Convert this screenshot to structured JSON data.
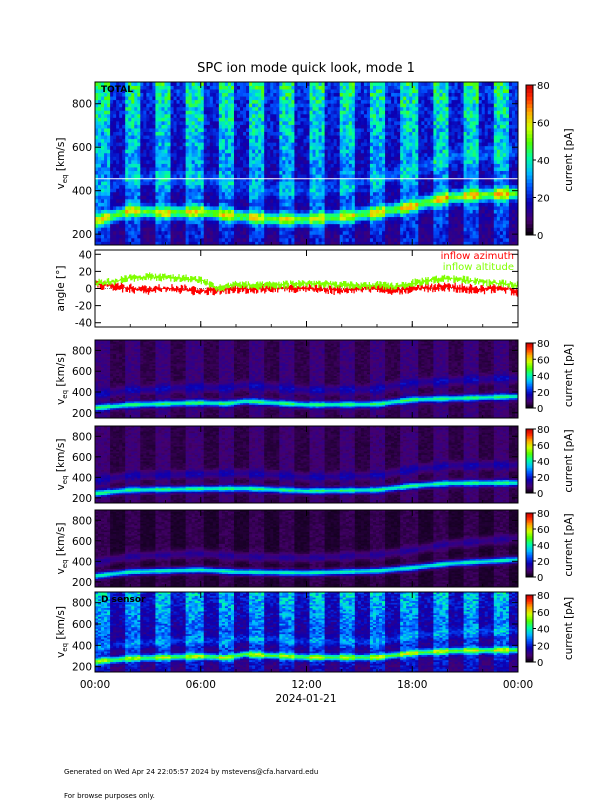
{
  "title": "SPC ion mode quick look, mode 1",
  "date_label": "2024-01-21",
  "footer": {
    "generated": "Generated on Wed Apr 24 22:05:57 2024 by mstevens@cfa.harvard.edu",
    "note": "For browse purposes only."
  },
  "colors": {
    "azimuth": "#ff0000",
    "altitude": "#80ff00",
    "axis": "#000000",
    "background": "#ffffff"
  },
  "chart_data": [
    {
      "type": "heatmap",
      "id": "total",
      "panel_label": "TOTAL",
      "ylabel_main": "v",
      "ylabel_sub": "eq",
      "ylabel_unit": " [km/s]",
      "y_ticks": [
        "200",
        "400",
        "600",
        "800"
      ],
      "y_tick_values": [
        200,
        400,
        600,
        800
      ],
      "ylim": [
        150,
        900
      ],
      "colorbar_label": "current [pA]",
      "colorbar_ticks": [
        "0",
        "20",
        "40",
        "60",
        "80"
      ],
      "colorbar_range": [
        0,
        80
      ],
      "reference_line_speed": 455,
      "background_level": 35,
      "peak_speed": [
        [
          0,
          260
        ],
        [
          2,
          310
        ],
        [
          4,
          300
        ],
        [
          6,
          305
        ],
        [
          8,
          285
        ],
        [
          10,
          270
        ],
        [
          12,
          270
        ],
        [
          14,
          280
        ],
        [
          16,
          300
        ],
        [
          18,
          330
        ],
        [
          20,
          370
        ],
        [
          22,
          380
        ],
        [
          24,
          390
        ]
      ]
    },
    {
      "type": "line",
      "id": "angle",
      "ylabel": "angle [°]",
      "y_ticks": [
        "-40",
        "-20",
        "0",
        "20",
        "40"
      ],
      "y_tick_values": [
        -40,
        -20,
        0,
        20,
        40
      ],
      "ylim": [
        -45,
        45
      ],
      "series": [
        {
          "name": "inflow azimuth",
          "color": "#ff0000",
          "x": [
            0,
            1,
            2,
            3,
            4,
            5,
            6,
            7,
            8,
            9,
            10,
            11,
            12,
            13,
            14,
            15,
            16,
            17,
            18,
            19,
            20,
            21,
            22,
            23,
            24
          ],
          "values": [
            5,
            3,
            0,
            -2,
            0,
            -1,
            -3,
            -2,
            0,
            -1,
            0,
            1,
            0,
            -1,
            -2,
            0,
            1,
            -2,
            0,
            1,
            2,
            0,
            -1,
            1,
            -4
          ]
        },
        {
          "name": "inflow altitude",
          "color": "#80ff00",
          "x": [
            0,
            1,
            2,
            3,
            4,
            5,
            6,
            7,
            8,
            9,
            10,
            11,
            12,
            13,
            14,
            15,
            16,
            17,
            18,
            19,
            20,
            21,
            22,
            23,
            24
          ],
          "values": [
            6,
            8,
            12,
            14,
            13,
            12,
            10,
            0,
            5,
            3,
            4,
            5,
            6,
            5,
            4,
            3,
            4,
            2,
            6,
            10,
            12,
            10,
            8,
            6,
            4
          ]
        }
      ]
    },
    {
      "type": "heatmap",
      "id": "sensor_a",
      "ylabel_main": "v",
      "ylabel_sub": "eq",
      "ylabel_unit": " [km/s]",
      "y_ticks": [
        "200",
        "400",
        "600",
        "800"
      ],
      "y_tick_values": [
        200,
        400,
        600,
        800
      ],
      "ylim": [
        150,
        900
      ],
      "colorbar_label": "current [pA]",
      "colorbar_ticks": [
        "0",
        "20",
        "40",
        "60",
        "80"
      ],
      "colorbar_range": [
        0,
        80
      ],
      "background_level": 10,
      "peak_speed": [
        [
          0,
          250
        ],
        [
          2,
          280
        ],
        [
          4,
          290
        ],
        [
          6,
          300
        ],
        [
          7.5,
          290
        ],
        [
          8.5,
          315
        ],
        [
          12,
          280
        ],
        [
          16,
          285
        ],
        [
          18,
          330
        ],
        [
          20,
          340
        ],
        [
          24,
          360
        ]
      ]
    },
    {
      "type": "heatmap",
      "id": "sensor_b",
      "ylabel_main": "v",
      "ylabel_sub": "eq",
      "ylabel_unit": " [km/s]",
      "y_ticks": [
        "200",
        "400",
        "600",
        "800"
      ],
      "y_tick_values": [
        200,
        400,
        600,
        800
      ],
      "ylim": [
        150,
        900
      ],
      "colorbar_label": "current [pA]",
      "colorbar_ticks": [
        "0",
        "20",
        "40",
        "60",
        "80"
      ],
      "colorbar_range": [
        0,
        80
      ],
      "background_level": 9,
      "peak_speed": [
        [
          0,
          245
        ],
        [
          2,
          280
        ],
        [
          4,
          285
        ],
        [
          6,
          290
        ],
        [
          8.5,
          295
        ],
        [
          12,
          270
        ],
        [
          16,
          280
        ],
        [
          18,
          320
        ],
        [
          20,
          345
        ],
        [
          24,
          350
        ]
      ]
    },
    {
      "type": "heatmap",
      "id": "sensor_c",
      "ylabel_main": "v",
      "ylabel_sub": "eq",
      "ylabel_unit": " [km/s]",
      "y_ticks": [
        "200",
        "400",
        "600",
        "800"
      ],
      "y_tick_values": [
        200,
        400,
        600,
        800
      ],
      "ylim": [
        150,
        900
      ],
      "colorbar_label": "current [pA]",
      "colorbar_ticks": [
        "0",
        "20",
        "40",
        "60",
        "80"
      ],
      "colorbar_range": [
        0,
        80
      ],
      "background_level": 6,
      "peak_speed": [
        [
          0,
          260
        ],
        [
          2,
          300
        ],
        [
          4,
          310
        ],
        [
          6,
          320
        ],
        [
          8,
          300
        ],
        [
          12,
          290
        ],
        [
          16,
          310
        ],
        [
          18,
          340
        ],
        [
          20,
          380
        ],
        [
          22,
          400
        ],
        [
          24,
          420
        ]
      ]
    },
    {
      "type": "heatmap",
      "id": "sensor_d",
      "panel_label": "D sensor",
      "ylabel_main": "v",
      "ylabel_sub": "eq",
      "ylabel_unit": " [km/s]",
      "y_ticks": [
        "200",
        "400",
        "600",
        "800"
      ],
      "y_tick_values": [
        200,
        400,
        600,
        800
      ],
      "ylim": [
        150,
        900
      ],
      "colorbar_label": "current [pA]",
      "colorbar_ticks": [
        "0",
        "20",
        "40",
        "60",
        "80"
      ],
      "colorbar_range": [
        0,
        80
      ],
      "background_level": 30,
      "peak_speed": [
        [
          0,
          250
        ],
        [
          2,
          280
        ],
        [
          4,
          290
        ],
        [
          6,
          300
        ],
        [
          7.5,
          285
        ],
        [
          8.5,
          320
        ],
        [
          12,
          290
        ],
        [
          16,
          290
        ],
        [
          18,
          330
        ],
        [
          20,
          350
        ],
        [
          24,
          360
        ]
      ]
    }
  ],
  "x_axis": {
    "tick_labels": [
      "00:00",
      "06:00",
      "12:00",
      "18:00",
      "00:00"
    ],
    "tick_hours": [
      0,
      6,
      12,
      18,
      24
    ],
    "range_hours": [
      0,
      24
    ]
  }
}
